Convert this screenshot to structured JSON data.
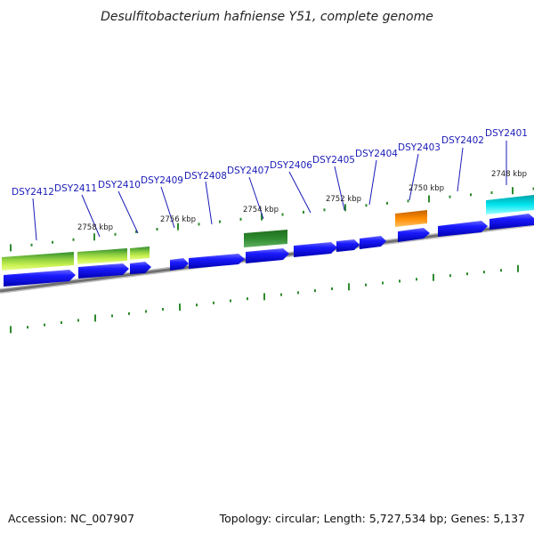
{
  "title": "Desulfitobacterium hafniense Y51, complete genome",
  "footer": {
    "accession": "Accession: NC_007907",
    "summary": "Topology: circular; Length: 5,727,534 bp; Genes: 5,137"
  },
  "gene_labels": [
    "DSY2412",
    "DSY2411",
    "DSY2410",
    "DSY2409",
    "DSY2408",
    "DSY2407",
    "DSY2406",
    "DSY2405",
    "DSY2404",
    "DSY2403",
    "DSY2402",
    "DSY2401"
  ],
  "kbp_labels": [
    "2758 kbp",
    "2756 kbp",
    "2754 kbp",
    "2752 kbp",
    "2750 kbp",
    "2748 kbp"
  ],
  "colors": {
    "gene_label": "#1a1ab8",
    "cds_blue": "#0000ee",
    "feature_green": "#2e8b2e",
    "feature_lightgreen": "#b8f040",
    "feature_orange": "#ff8c00",
    "feature_cyan": "#00e5ee",
    "backbone": "#888888",
    "tick": "#2e8b2e"
  }
}
